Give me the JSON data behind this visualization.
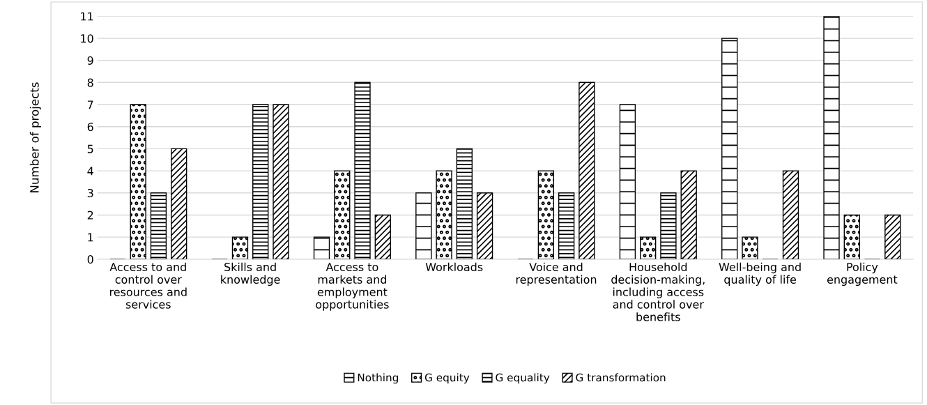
{
  "chart_data": {
    "type": "bar",
    "ylabel": "Number of projects",
    "categories": [
      "Access to and control over resources and services",
      "Skills and knowledge",
      "Access to markets and employment opportunities",
      "Workloads",
      "Voice and representation",
      "Household decision-making, including access and control over benefits",
      "Well-being and quality of life",
      "Policy engagement"
    ],
    "series": [
      {
        "name": "Nothing",
        "color": "#000000",
        "values": [
          0,
          0,
          1,
          3,
          0,
          7,
          10,
          11
        ]
      },
      {
        "name": "G equity",
        "color": "#000000",
        "values": [
          7,
          1,
          4,
          4,
          4,
          1,
          1,
          2
        ]
      },
      {
        "name": "G equality",
        "color": "#000000",
        "values": [
          3,
          7,
          8,
          5,
          3,
          3,
          0,
          0
        ]
      },
      {
        "name": "G transformation",
        "color": "#000000",
        "values": [
          5,
          7,
          2,
          3,
          8,
          4,
          4,
          2
        ]
      }
    ],
    "ylim": [
      0,
      11
    ],
    "yticks": [
      0,
      1,
      2,
      3,
      4,
      5,
      6,
      7,
      8,
      9,
      10,
      11
    ],
    "grid": "y",
    "legend": "bottom"
  }
}
